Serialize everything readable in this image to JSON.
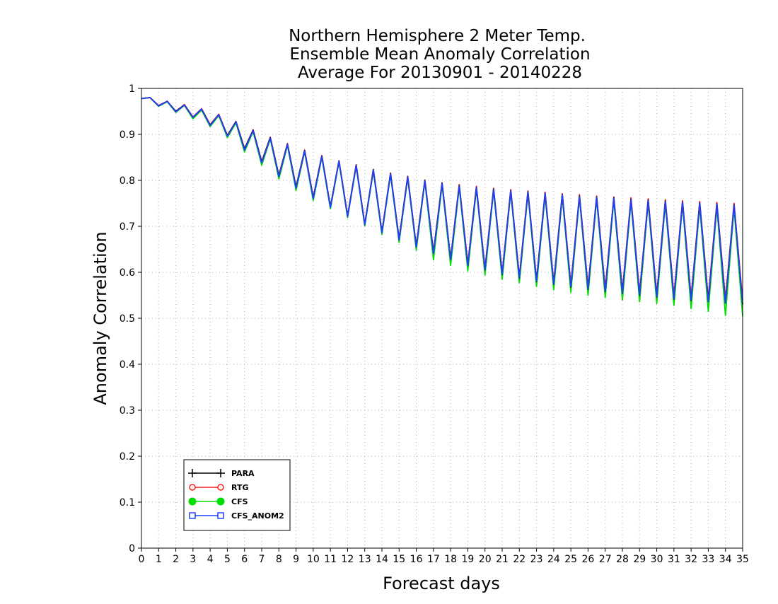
{
  "chart_data": {
    "type": "line",
    "title": [
      "Northern Hemisphere 2 Meter Temp.",
      "Ensemble Mean Anomaly Correlation",
      "Average For 20130901 - 20140228"
    ],
    "xlabel": "Forecast days",
    "ylabel": "Anomaly Correlation",
    "xlim": [
      0,
      35
    ],
    "ylim": [
      0,
      1
    ],
    "xticks": [
      "0",
      "1",
      "2",
      "3",
      "4",
      "5",
      "6",
      "7",
      "8",
      "9",
      "10",
      "11",
      "12",
      "13",
      "14",
      "15",
      "16",
      "17",
      "18",
      "19",
      "20",
      "21",
      "22",
      "23",
      "24",
      "25",
      "26",
      "27",
      "28",
      "29",
      "30",
      "31",
      "32",
      "33",
      "34",
      "35"
    ],
    "yticks": [
      "0",
      "0.1",
      "0.2",
      "0.3",
      "0.4",
      "0.5",
      "0.6",
      "0.7",
      "0.8",
      "0.9",
      "1"
    ],
    "grid": true,
    "legend_position": "bottom-left",
    "x": [
      0,
      0.5,
      1,
      1.5,
      2,
      2.5,
      3,
      3.5,
      4,
      4.5,
      5,
      5.5,
      6,
      6.5,
      7,
      7.5,
      8,
      8.5,
      9,
      9.5,
      10,
      10.5,
      11,
      11.5,
      12,
      12.5,
      13,
      13.5,
      14,
      14.5,
      15,
      15.5,
      16,
      16.5,
      17,
      17.5,
      18,
      18.5,
      19,
      19.5,
      20,
      20.5,
      21,
      21.5,
      22,
      22.5,
      23,
      23.5,
      24,
      24.5,
      25,
      25.5,
      26,
      26.5,
      27,
      27.5,
      28,
      28.5,
      29,
      29.5,
      30,
      30.5,
      31,
      31.5,
      32,
      32.5,
      33,
      33.5,
      34,
      34.5,
      35
    ],
    "series": [
      {
        "name": "PARA",
        "color": "#000000",
        "marker": "plus",
        "values": [
          0.978,
          0.98,
          0.962,
          0.972,
          0.95,
          0.964,
          0.937,
          0.955,
          0.92,
          0.943,
          0.897,
          0.928,
          0.868,
          0.909,
          0.84,
          0.893,
          0.81,
          0.879,
          0.785,
          0.865,
          0.762,
          0.853,
          0.742,
          0.842,
          0.722,
          0.833,
          0.704,
          0.823,
          0.687,
          0.815,
          0.672,
          0.808,
          0.656,
          0.8,
          0.642,
          0.794,
          0.628,
          0.789,
          0.615,
          0.785,
          0.605,
          0.781,
          0.595,
          0.778,
          0.587,
          0.775,
          0.58,
          0.772,
          0.574,
          0.769,
          0.568,
          0.766,
          0.563,
          0.764,
          0.558,
          0.762,
          0.554,
          0.759,
          0.55,
          0.757,
          0.546,
          0.755,
          0.542,
          0.753,
          0.539,
          0.751,
          0.536,
          0.749,
          0.533,
          0.747,
          0.53
        ]
      },
      {
        "name": "RTG",
        "color": "#ff2020",
        "marker": "open-circle",
        "values": [
          0.978,
          0.98,
          0.963,
          0.972,
          0.95,
          0.965,
          0.938,
          0.956,
          0.921,
          0.944,
          0.898,
          0.928,
          0.869,
          0.91,
          0.841,
          0.894,
          0.811,
          0.88,
          0.786,
          0.866,
          0.763,
          0.854,
          0.743,
          0.843,
          0.723,
          0.834,
          0.705,
          0.824,
          0.688,
          0.816,
          0.673,
          0.809,
          0.658,
          0.801,
          0.645,
          0.795,
          0.631,
          0.791,
          0.619,
          0.787,
          0.609,
          0.783,
          0.6,
          0.78,
          0.592,
          0.777,
          0.585,
          0.774,
          0.579,
          0.771,
          0.574,
          0.769,
          0.569,
          0.766,
          0.565,
          0.764,
          0.561,
          0.762,
          0.557,
          0.76,
          0.553,
          0.758,
          0.55,
          0.756,
          0.547,
          0.754,
          0.544,
          0.752,
          0.542,
          0.75,
          0.539
        ]
      },
      {
        "name": "CFS",
        "color": "#00dd00",
        "marker": "filled-circle",
        "values": [
          0.978,
          0.98,
          0.961,
          0.971,
          0.948,
          0.963,
          0.934,
          0.953,
          0.917,
          0.941,
          0.893,
          0.925,
          0.862,
          0.906,
          0.833,
          0.89,
          0.803,
          0.876,
          0.778,
          0.862,
          0.756,
          0.85,
          0.738,
          0.84,
          0.719,
          0.83,
          0.701,
          0.82,
          0.682,
          0.812,
          0.665,
          0.805,
          0.648,
          0.797,
          0.627,
          0.79,
          0.615,
          0.785,
          0.603,
          0.781,
          0.594,
          0.777,
          0.585,
          0.774,
          0.577,
          0.771,
          0.569,
          0.767,
          0.562,
          0.764,
          0.556,
          0.762,
          0.55,
          0.759,
          0.545,
          0.757,
          0.54,
          0.754,
          0.536,
          0.752,
          0.532,
          0.749,
          0.528,
          0.747,
          0.521,
          0.744,
          0.515,
          0.742,
          0.506,
          0.739,
          0.505
        ]
      },
      {
        "name": "CFS_ANOM2",
        "color": "#2040ff",
        "marker": "open-square",
        "values": [
          0.978,
          0.98,
          0.962,
          0.972,
          0.949,
          0.964,
          0.937,
          0.955,
          0.919,
          0.943,
          0.896,
          0.927,
          0.866,
          0.908,
          0.838,
          0.892,
          0.808,
          0.878,
          0.783,
          0.864,
          0.76,
          0.852,
          0.741,
          0.842,
          0.721,
          0.832,
          0.703,
          0.822,
          0.686,
          0.814,
          0.67,
          0.807,
          0.655,
          0.799,
          0.641,
          0.793,
          0.628,
          0.788,
          0.615,
          0.784,
          0.605,
          0.78,
          0.596,
          0.777,
          0.588,
          0.774,
          0.581,
          0.771,
          0.575,
          0.768,
          0.569,
          0.765,
          0.564,
          0.763,
          0.559,
          0.761,
          0.555,
          0.758,
          0.551,
          0.756,
          0.547,
          0.754,
          0.543,
          0.752,
          0.54,
          0.75,
          0.536,
          0.748,
          0.533,
          0.746,
          0.53
        ]
      }
    ]
  }
}
